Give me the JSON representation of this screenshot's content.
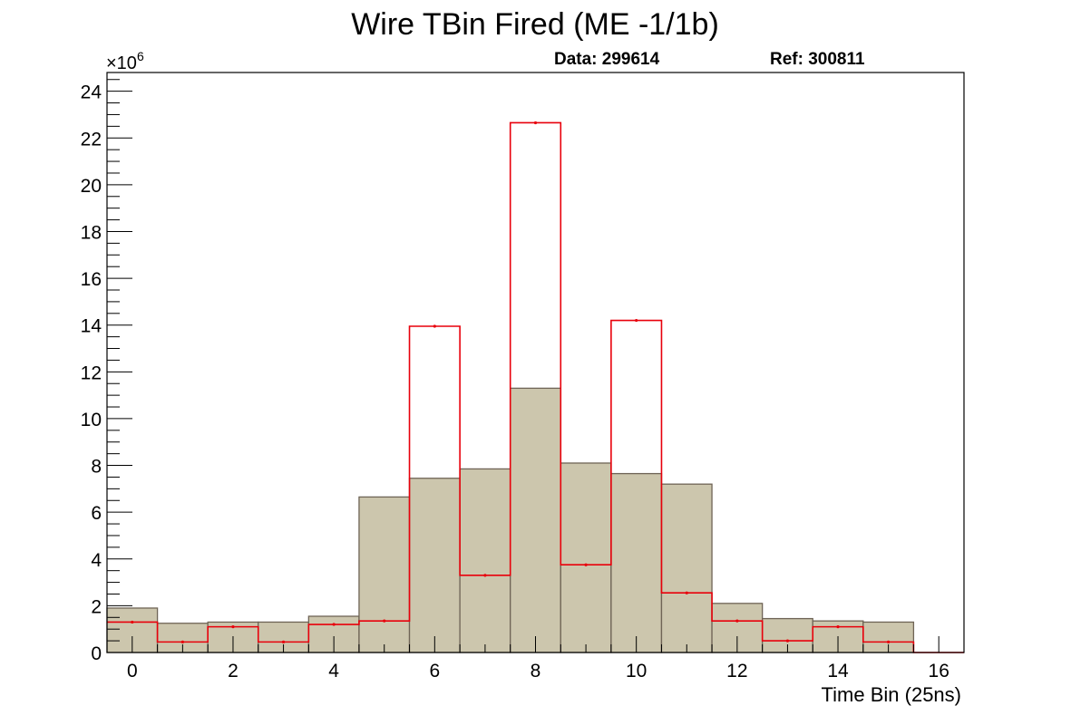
{
  "chart_data": {
    "type": "bar",
    "title": "Wire TBin Fired (ME -1/1b)",
    "xlabel": "Time Bin (25ns)",
    "ylabel": "",
    "y_multiplier": "×10",
    "y_multiplier_exp": "6",
    "data_label": "Data: 299614",
    "ref_label": "Ref: 300811",
    "xlim": [
      -0.5,
      16.5
    ],
    "ylim": [
      0,
      24.8
    ],
    "x_ticks": [
      0,
      2,
      4,
      6,
      8,
      10,
      12,
      14,
      16
    ],
    "y_ticks": [
      0,
      2,
      4,
      6,
      8,
      10,
      12,
      14,
      16,
      18,
      20,
      22,
      24
    ],
    "bin_centers": [
      0,
      1,
      2,
      3,
      4,
      5,
      6,
      7,
      8,
      9,
      10,
      11,
      12,
      13,
      14,
      15,
      16
    ],
    "series": [
      {
        "name": "Data: 299614",
        "style": "filled",
        "fill_color": "#ccc6ad",
        "line_color": "#6f6456",
        "values": [
          1.9,
          1.25,
          1.3,
          1.3,
          1.55,
          6.65,
          7.45,
          7.85,
          11.3,
          8.1,
          7.65,
          7.2,
          2.1,
          1.45,
          1.35,
          1.3,
          0
        ]
      },
      {
        "name": "Ref: 300811",
        "style": "step",
        "line_color": "#e8000b",
        "values": [
          1.3,
          0.45,
          1.1,
          0.45,
          1.2,
          1.35,
          13.95,
          3.3,
          22.65,
          3.75,
          14.2,
          2.55,
          1.35,
          0.5,
          1.1,
          0.45,
          0
        ]
      }
    ],
    "grid": false,
    "legend": "none"
  }
}
